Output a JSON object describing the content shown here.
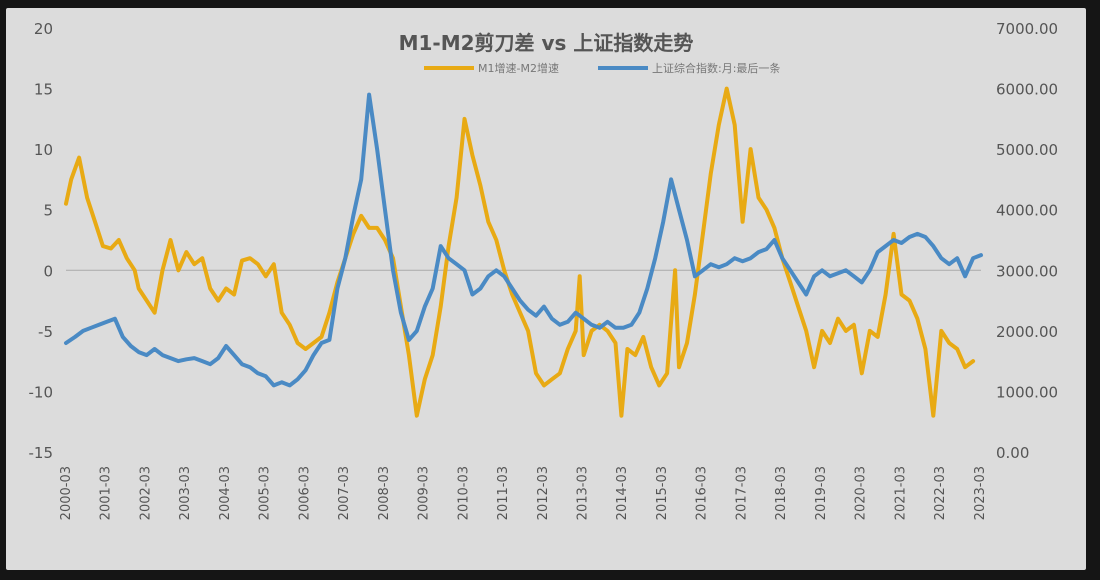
{
  "chart_data": {
    "type": "line",
    "title": "M1-M2剪刀差 vs 上证指数走势",
    "legend_position": "top-center",
    "grid": false,
    "x_labels": [
      "2000-03",
      "2001-03",
      "2002-03",
      "2003-03",
      "2004-03",
      "2005-03",
      "2006-03",
      "2007-03",
      "2008-03",
      "2009-03",
      "2010-03",
      "2011-03",
      "2012-03",
      "2013-03",
      "2014-03",
      "2015-03",
      "2016-03",
      "2017-03",
      "2018-03",
      "2019-03",
      "2020-03",
      "2021-03",
      "2022-03",
      "2023-03"
    ],
    "y_left": {
      "ticks": [
        "20",
        "15",
        "10",
        "5",
        "0",
        "-5",
        "-10",
        "-15"
      ],
      "ylim": [
        -15,
        20
      ]
    },
    "y_right": {
      "ticks": [
        "7000.00",
        "6000.00",
        "5000.00",
        "4000.00",
        "3000.00",
        "2000.00",
        "1000.00",
        "0.00"
      ],
      "ylim": [
        0,
        7000
      ]
    },
    "series": [
      {
        "name": "M1增速-M2增速",
        "axis": "left",
        "color": "#e8aa14",
        "points": [
          [
            2000.17,
            5.5
          ],
          [
            2000.3,
            7.5
          ],
          [
            2000.5,
            9.3
          ],
          [
            2000.7,
            6
          ],
          [
            2000.9,
            4
          ],
          [
            2001.1,
            2
          ],
          [
            2001.3,
            1.8
          ],
          [
            2001.5,
            2.5
          ],
          [
            2001.7,
            1
          ],
          [
            2001.9,
            0
          ],
          [
            2002.0,
            -1.5
          ],
          [
            2002.2,
            -2.5
          ],
          [
            2002.4,
            -3.5
          ],
          [
            2002.6,
            0
          ],
          [
            2002.8,
            2.5
          ],
          [
            2003.0,
            0
          ],
          [
            2003.2,
            1.5
          ],
          [
            2003.4,
            0.5
          ],
          [
            2003.6,
            1
          ],
          [
            2003.8,
            -1.5
          ],
          [
            2004.0,
            -2.5
          ],
          [
            2004.2,
            -1.5
          ],
          [
            2004.4,
            -2
          ],
          [
            2004.6,
            0.8
          ],
          [
            2004.8,
            1
          ],
          [
            2005.0,
            0.5
          ],
          [
            2005.2,
            -0.5
          ],
          [
            2005.4,
            0.5
          ],
          [
            2005.6,
            -3.5
          ],
          [
            2005.8,
            -4.5
          ],
          [
            2006.0,
            -6
          ],
          [
            2006.2,
            -6.5
          ],
          [
            2006.4,
            -6
          ],
          [
            2006.6,
            -5.5
          ],
          [
            2006.8,
            -3.5
          ],
          [
            2007.0,
            -1
          ],
          [
            2007.2,
            1
          ],
          [
            2007.4,
            3
          ],
          [
            2007.6,
            4.5
          ],
          [
            2007.8,
            3.5
          ],
          [
            2008.0,
            3.5
          ],
          [
            2008.2,
            2.5
          ],
          [
            2008.4,
            1
          ],
          [
            2008.6,
            -3
          ],
          [
            2008.8,
            -7
          ],
          [
            2009.0,
            -12
          ],
          [
            2009.2,
            -9
          ],
          [
            2009.4,
            -7
          ],
          [
            2009.6,
            -3
          ],
          [
            2009.8,
            2
          ],
          [
            2010.0,
            6
          ],
          [
            2010.2,
            12.5
          ],
          [
            2010.4,
            9.5
          ],
          [
            2010.6,
            7
          ],
          [
            2010.8,
            4
          ],
          [
            2011.0,
            2.5
          ],
          [
            2011.2,
            0
          ],
          [
            2011.4,
            -2
          ],
          [
            2011.6,
            -3.5
          ],
          [
            2011.8,
            -5
          ],
          [
            2012.0,
            -8.5
          ],
          [
            2012.2,
            -9.5
          ],
          [
            2012.4,
            -9
          ],
          [
            2012.6,
            -8.5
          ],
          [
            2012.8,
            -6.5
          ],
          [
            2013.0,
            -5
          ],
          [
            2013.1,
            -0.5
          ],
          [
            2013.2,
            -7
          ],
          [
            2013.4,
            -5
          ],
          [
            2013.6,
            -4.5
          ],
          [
            2013.8,
            -5
          ],
          [
            2014.0,
            -6
          ],
          [
            2014.15,
            -12
          ],
          [
            2014.3,
            -6.5
          ],
          [
            2014.5,
            -7
          ],
          [
            2014.7,
            -5.5
          ],
          [
            2014.9,
            -8
          ],
          [
            2015.1,
            -9.5
          ],
          [
            2015.3,
            -8.5
          ],
          [
            2015.5,
            0
          ],
          [
            2015.6,
            -8
          ],
          [
            2015.8,
            -6
          ],
          [
            2016.0,
            -2
          ],
          [
            2016.2,
            3
          ],
          [
            2016.4,
            8
          ],
          [
            2016.6,
            12
          ],
          [
            2016.8,
            15
          ],
          [
            2017.0,
            12
          ],
          [
            2017.2,
            4
          ],
          [
            2017.4,
            10
          ],
          [
            2017.6,
            6
          ],
          [
            2017.8,
            5
          ],
          [
            2018.0,
            3.5
          ],
          [
            2018.2,
            1
          ],
          [
            2018.4,
            -1
          ],
          [
            2018.6,
            -3
          ],
          [
            2018.8,
            -5
          ],
          [
            2019.0,
            -8
          ],
          [
            2019.2,
            -5
          ],
          [
            2019.4,
            -6
          ],
          [
            2019.6,
            -4
          ],
          [
            2019.8,
            -5
          ],
          [
            2020.0,
            -4.5
          ],
          [
            2020.2,
            -8.5
          ],
          [
            2020.4,
            -5
          ],
          [
            2020.6,
            -5.5
          ],
          [
            2020.8,
            -2
          ],
          [
            2021.0,
            3
          ],
          [
            2021.2,
            -2
          ],
          [
            2021.4,
            -2.5
          ],
          [
            2021.6,
            -4
          ],
          [
            2021.8,
            -6.5
          ],
          [
            2022.0,
            -12
          ],
          [
            2022.2,
            -5
          ],
          [
            2022.4,
            -6
          ],
          [
            2022.6,
            -6.5
          ],
          [
            2022.8,
            -8
          ],
          [
            2023.0,
            -7.5
          ]
        ]
      },
      {
        "name": "上证综合指数:月:最后一条",
        "axis": "right",
        "color": "#4a8ac4",
        "points": [
          [
            2000.17,
            1800
          ],
          [
            2000.4,
            1900
          ],
          [
            2000.6,
            2000
          ],
          [
            2000.8,
            2050
          ],
          [
            2001.0,
            2100
          ],
          [
            2001.2,
            2150
          ],
          [
            2001.4,
            2200
          ],
          [
            2001.6,
            1900
          ],
          [
            2001.8,
            1750
          ],
          [
            2002.0,
            1650
          ],
          [
            2002.2,
            1600
          ],
          [
            2002.4,
            1700
          ],
          [
            2002.6,
            1600
          ],
          [
            2002.8,
            1550
          ],
          [
            2003.0,
            1500
          ],
          [
            2003.2,
            1530
          ],
          [
            2003.4,
            1550
          ],
          [
            2003.6,
            1500
          ],
          [
            2003.8,
            1450
          ],
          [
            2004.0,
            1550
          ],
          [
            2004.2,
            1750
          ],
          [
            2004.4,
            1600
          ],
          [
            2004.6,
            1450
          ],
          [
            2004.8,
            1400
          ],
          [
            2005.0,
            1300
          ],
          [
            2005.2,
            1250
          ],
          [
            2005.4,
            1100
          ],
          [
            2005.6,
            1150
          ],
          [
            2005.8,
            1100
          ],
          [
            2006.0,
            1200
          ],
          [
            2006.2,
            1350
          ],
          [
            2006.4,
            1600
          ],
          [
            2006.6,
            1800
          ],
          [
            2006.8,
            1850
          ],
          [
            2007.0,
            2700
          ],
          [
            2007.2,
            3200
          ],
          [
            2007.4,
            3900
          ],
          [
            2007.6,
            4500
          ],
          [
            2007.8,
            5900
          ],
          [
            2008.0,
            5000
          ],
          [
            2008.2,
            4000
          ],
          [
            2008.4,
            3000
          ],
          [
            2008.6,
            2300
          ],
          [
            2008.8,
            1850
          ],
          [
            2009.0,
            2000
          ],
          [
            2009.2,
            2400
          ],
          [
            2009.4,
            2700
          ],
          [
            2009.6,
            3400
          ],
          [
            2009.8,
            3200
          ],
          [
            2010.0,
            3100
          ],
          [
            2010.2,
            3000
          ],
          [
            2010.4,
            2600
          ],
          [
            2010.6,
            2700
          ],
          [
            2010.8,
            2900
          ],
          [
            2011.0,
            3000
          ],
          [
            2011.2,
            2900
          ],
          [
            2011.4,
            2700
          ],
          [
            2011.6,
            2500
          ],
          [
            2011.8,
            2350
          ],
          [
            2012.0,
            2250
          ],
          [
            2012.2,
            2400
          ],
          [
            2012.4,
            2200
          ],
          [
            2012.6,
            2100
          ],
          [
            2012.8,
            2150
          ],
          [
            2013.0,
            2300
          ],
          [
            2013.2,
            2200
          ],
          [
            2013.4,
            2100
          ],
          [
            2013.6,
            2050
          ],
          [
            2013.8,
            2150
          ],
          [
            2014.0,
            2050
          ],
          [
            2014.2,
            2050
          ],
          [
            2014.4,
            2100
          ],
          [
            2014.6,
            2300
          ],
          [
            2014.8,
            2700
          ],
          [
            2015.0,
            3200
          ],
          [
            2015.2,
            3800
          ],
          [
            2015.4,
            4500
          ],
          [
            2015.6,
            4000
          ],
          [
            2015.8,
            3500
          ],
          [
            2016.0,
            2900
          ],
          [
            2016.2,
            3000
          ],
          [
            2016.4,
            3100
          ],
          [
            2016.6,
            3050
          ],
          [
            2016.8,
            3100
          ],
          [
            2017.0,
            3200
          ],
          [
            2017.2,
            3150
          ],
          [
            2017.4,
            3200
          ],
          [
            2017.6,
            3300
          ],
          [
            2017.8,
            3350
          ],
          [
            2018.0,
            3500
          ],
          [
            2018.2,
            3200
          ],
          [
            2018.4,
            3000
          ],
          [
            2018.6,
            2800
          ],
          [
            2018.8,
            2600
          ],
          [
            2019.0,
            2900
          ],
          [
            2019.2,
            3000
          ],
          [
            2019.4,
            2900
          ],
          [
            2019.6,
            2950
          ],
          [
            2019.8,
            3000
          ],
          [
            2020.0,
            2900
          ],
          [
            2020.2,
            2800
          ],
          [
            2020.4,
            3000
          ],
          [
            2020.6,
            3300
          ],
          [
            2020.8,
            3400
          ],
          [
            2021.0,
            3500
          ],
          [
            2021.2,
            3450
          ],
          [
            2021.4,
            3550
          ],
          [
            2021.6,
            3600
          ],
          [
            2021.8,
            3550
          ],
          [
            2022.0,
            3400
          ],
          [
            2022.2,
            3200
          ],
          [
            2022.4,
            3100
          ],
          [
            2022.6,
            3200
          ],
          [
            2022.8,
            2900
          ],
          [
            2023.0,
            3200
          ],
          [
            2023.2,
            3250
          ]
        ]
      }
    ]
  }
}
